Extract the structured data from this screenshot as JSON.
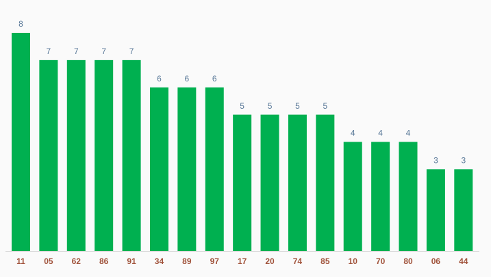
{
  "chart_data": {
    "type": "bar",
    "categories": [
      "11",
      "05",
      "62",
      "86",
      "91",
      "34",
      "89",
      "97",
      "17",
      "20",
      "74",
      "85",
      "10",
      "70",
      "80",
      "06",
      "44"
    ],
    "values": [
      8,
      7,
      7,
      7,
      7,
      6,
      6,
      6,
      5,
      5,
      5,
      5,
      4,
      4,
      4,
      3,
      3
    ],
    "color": "#00b050",
    "ylim": [
      0,
      8
    ]
  }
}
